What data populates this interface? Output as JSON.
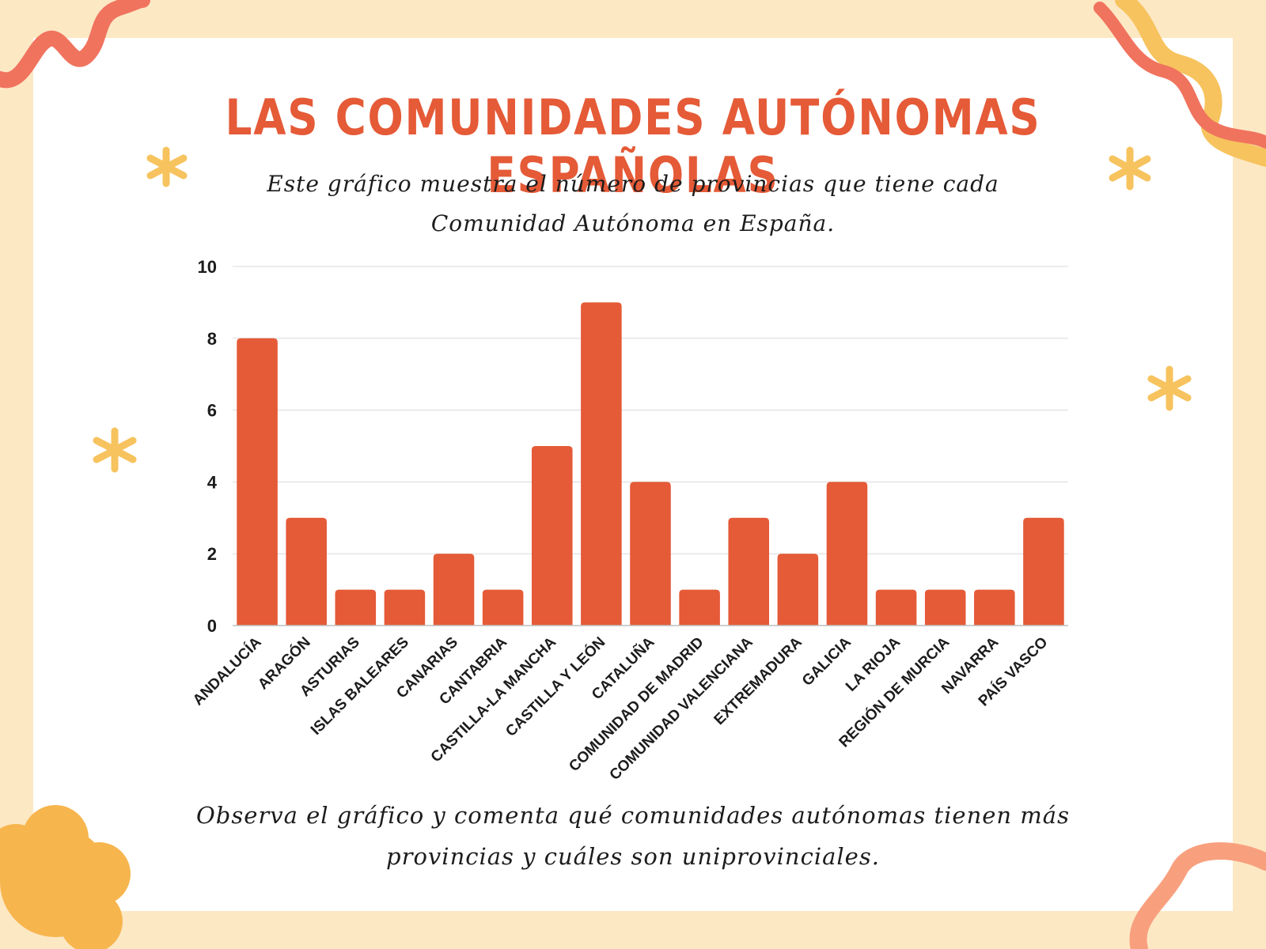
{
  "header": {
    "title": "LAS COMUNIDADES AUTÓNOMAS ESPAÑOLAS",
    "subtitle": "Este gráfico muestra el número de provincias que tiene cada Comunidad Autónoma en España."
  },
  "footer": {
    "text": "Observa el gráfico y comenta qué comunidades autónomas tienen más provincias y cuáles son uniprovinciales."
  },
  "colors": {
    "bar": "#e55a37",
    "title": "#e55a37",
    "background": "#fde8c4",
    "decoration_yellow": "#f7c35e",
    "decoration_coral": "#f0735e"
  },
  "chart_data": {
    "type": "bar",
    "categories": [
      "ANDALUCÍA",
      "ARAGÓN",
      "ASTURIAS",
      "ISLAS BALEARES",
      "CANARIAS",
      "CANTABRIA",
      "CASTILLA-LA MANCHA",
      "CASTILLA Y LEÓN",
      "CATALUÑA",
      "COMUNIDAD DE MADRID",
      "COMUNIDAD VALENCIANA",
      "EXTREMADURA",
      "GALICIA",
      "LA RIOJA",
      "REGIÓN DE MURCIA",
      "NAVARRA",
      "PAÍS VASCO"
    ],
    "values": [
      8,
      3,
      1,
      1,
      2,
      1,
      5,
      9,
      4,
      1,
      3,
      2,
      4,
      1,
      1,
      1,
      3
    ],
    "ylim": [
      0,
      10
    ],
    "yticks": [
      0,
      2,
      4,
      6,
      8,
      10
    ],
    "grid": true,
    "legend": "none"
  }
}
